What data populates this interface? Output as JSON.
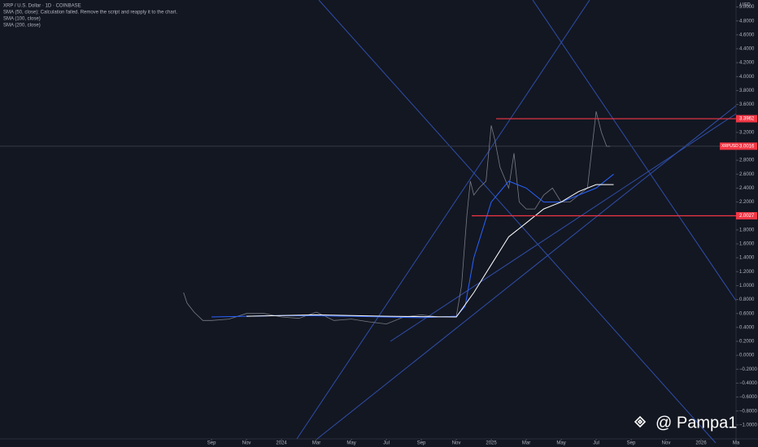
{
  "chart_data": {
    "type": "line",
    "title": "XRP / U.S. Dollar · 1D · COINBASE",
    "annotations": [
      "SMA (50, close): Calculation failed. Remove the script and reapply it to the chart."
    ],
    "y_unit": "USD",
    "watermark": "@ Pampa1",
    "xlim": [
      -12.1,
      30
    ],
    "ylim": [
      -1.2,
      5.1
    ],
    "xticks": [
      {
        "value": 0,
        "label": "Sep"
      },
      {
        "value": 2,
        "label": "Nov"
      },
      {
        "value": 4,
        "label": "2024"
      },
      {
        "value": 6,
        "label": "Mar"
      },
      {
        "value": 8,
        "label": "May"
      },
      {
        "value": 10,
        "label": "Jul"
      },
      {
        "value": 12,
        "label": "Sep"
      },
      {
        "value": 14,
        "label": "Nov"
      },
      {
        "value": 16,
        "label": "2025"
      },
      {
        "value": 18,
        "label": "Mar"
      },
      {
        "value": 20,
        "label": "May"
      },
      {
        "value": 22,
        "label": "Jul"
      },
      {
        "value": 24,
        "label": "Sep"
      },
      {
        "value": 26,
        "label": "Nov"
      },
      {
        "value": 28,
        "label": "2026"
      },
      {
        "value": 30,
        "label": "Ma"
      }
    ],
    "yticks": [
      {
        "value": 5.0,
        "label": "5.0000"
      },
      {
        "value": 4.8,
        "label": "4.8000"
      },
      {
        "value": 4.6,
        "label": "4.6000"
      },
      {
        "value": 4.4,
        "label": "4.4000"
      },
      {
        "value": 4.2,
        "label": "4.2000"
      },
      {
        "value": 4.0,
        "label": "4.0000"
      },
      {
        "value": 3.8,
        "label": "3.8000"
      },
      {
        "value": 3.6,
        "label": "3.6000"
      },
      {
        "value": 3.2,
        "label": "3.2000"
      },
      {
        "value": 2.8,
        "label": "2.8000"
      },
      {
        "value": 2.6,
        "label": "2.6000"
      },
      {
        "value": 2.4,
        "label": "2.4000"
      },
      {
        "value": 2.2,
        "label": "2.2000"
      },
      {
        "value": 1.8,
        "label": "1.8000"
      },
      {
        "value": 1.6,
        "label": "1.6000"
      },
      {
        "value": 1.4,
        "label": "1.4000"
      },
      {
        "value": 1.2,
        "label": "1.2000"
      },
      {
        "value": 1.0,
        "label": "1.0000"
      },
      {
        "value": 0.8,
        "label": "0.8000"
      },
      {
        "value": 0.6,
        "label": "0.6000"
      },
      {
        "value": 0.4,
        "label": "0.4000"
      },
      {
        "value": 0.2,
        "label": "0.2000"
      },
      {
        "value": 0.0,
        "label": "0.0000"
      },
      {
        "value": -0.2,
        "label": "−0.2000"
      },
      {
        "value": -0.4,
        "label": "−0.4000"
      },
      {
        "value": -0.6,
        "label": "−0.6000"
      },
      {
        "value": -0.8,
        "label": "−0.8000"
      },
      {
        "value": -1.0,
        "label": "−1.0000"
      }
    ],
    "levels": [
      3.3962,
      2.0027
    ],
    "level_color": "#f23645",
    "last_price": 3.0016,
    "series": [
      {
        "name": "XRPUSD",
        "color": "#787b86",
        "x": [
          -1.6,
          -1.4,
          -1.0,
          -0.5,
          0,
          1,
          2,
          3,
          4,
          5,
          6,
          7,
          8,
          9,
          10,
          11,
          12,
          13,
          14,
          14.3,
          14.6,
          14.8,
          15,
          15.3,
          15.7,
          16,
          16.2,
          16.5,
          17,
          17.3,
          17.6,
          18,
          18.5,
          19,
          19.5,
          20,
          20.5,
          21,
          21.5,
          22,
          22.3,
          22.6,
          22.8
        ],
        "values": [
          0.9,
          0.75,
          0.62,
          0.5,
          0.5,
          0.52,
          0.6,
          0.6,
          0.55,
          0.53,
          0.62,
          0.5,
          0.52,
          0.48,
          0.45,
          0.55,
          0.58,
          0.55,
          0.56,
          1.0,
          2.0,
          2.5,
          2.3,
          2.4,
          2.5,
          3.3,
          3.1,
          2.7,
          2.4,
          2.9,
          2.2,
          2.1,
          2.1,
          2.3,
          2.4,
          2.2,
          2.2,
          2.3,
          2.4,
          3.5,
          3.2,
          3.0,
          3.0
        ]
      },
      {
        "name": "SMA (100, close)",
        "color": "#2962ff",
        "x": [
          0,
          4,
          8,
          12,
          14,
          14.5,
          15,
          16,
          17,
          18,
          19,
          20,
          21,
          22,
          23
        ],
        "values": [
          0.55,
          0.57,
          0.56,
          0.54,
          0.56,
          0.7,
          1.4,
          2.2,
          2.5,
          2.4,
          2.2,
          2.2,
          2.3,
          2.4,
          2.6
        ]
      },
      {
        "name": "SMA (200, close)",
        "color": "#ffffff",
        "x": [
          2,
          6,
          10,
          14,
          15,
          16,
          17,
          18,
          19,
          20,
          21,
          22,
          23
        ],
        "values": [
          0.56,
          0.58,
          0.56,
          0.55,
          0.9,
          1.3,
          1.7,
          1.9,
          2.1,
          2.2,
          2.35,
          2.45,
          2.45
        ]
      }
    ]
  }
}
